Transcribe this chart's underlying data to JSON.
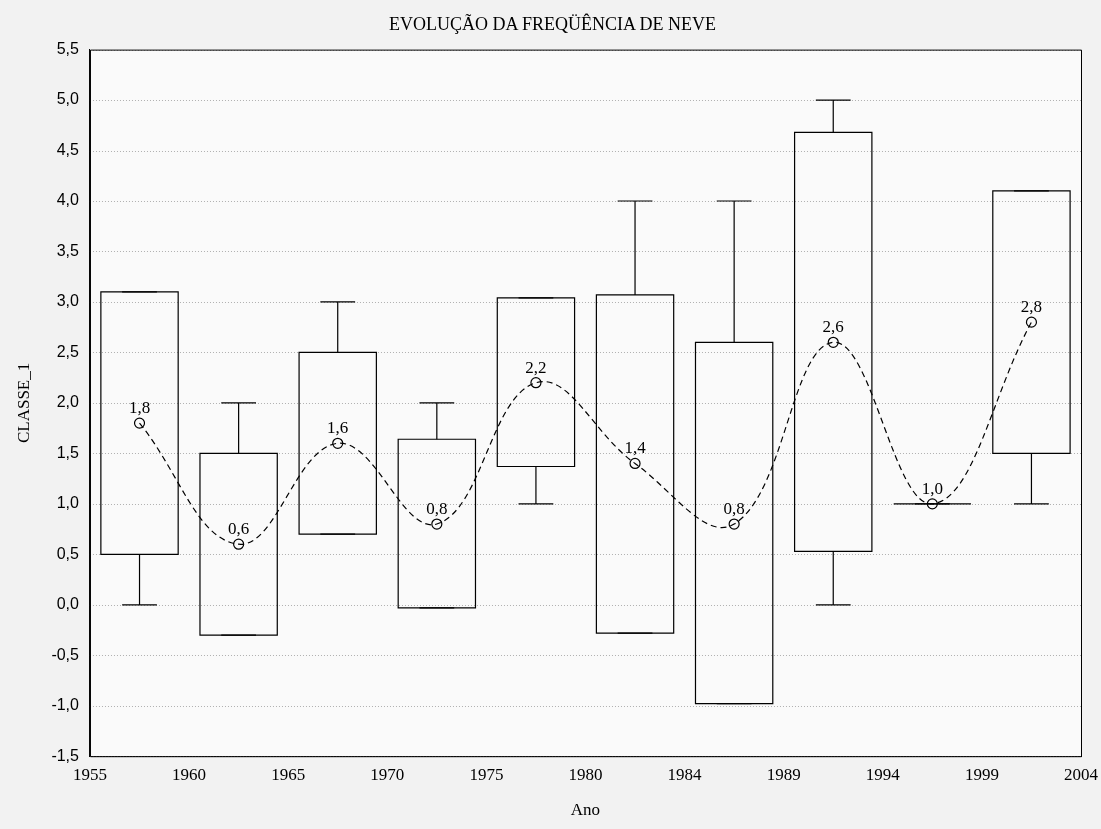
{
  "chart_data": {
    "type": "box",
    "title": "EVOLUÇÃO DA FREQÜÊNCIA DE NEVE",
    "xlabel": "Ano",
    "ylabel": "CLASSE_1",
    "categories": [
      null,
      null,
      null,
      null,
      null,
      null,
      null,
      null,
      null,
      null
    ],
    "annotations": [
      "1955",
      "1960",
      "1965",
      "1970",
      "1975",
      "1980",
      "1984",
      "1989",
      "1994",
      "1999",
      "2004"
    ],
    "ylim": [
      -1.5,
      5.5
    ],
    "yticks": [
      {
        "value": -1.5,
        "label": "-1,5"
      },
      {
        "value": -1,
        "label": "-1,0"
      },
      {
        "value": -0.5,
        "label": "-0,5"
      },
      {
        "value": 0,
        "label": "0,0"
      },
      {
        "value": 0.5,
        "label": "0,5"
      },
      {
        "value": 1,
        "label": "1,0"
      },
      {
        "value": 1.5,
        "label": "1,5"
      },
      {
        "value": 2,
        "label": "2,0"
      },
      {
        "value": 2.5,
        "label": "2,5"
      },
      {
        "value": 3,
        "label": "3,0"
      },
      {
        "value": 3.5,
        "label": "3,5"
      },
      {
        "value": 4,
        "label": "4,0"
      },
      {
        "value": 4.5,
        "label": "4,5"
      },
      {
        "value": 5,
        "label": "5,0"
      },
      {
        "value": 5.5,
        "label": "5,5"
      }
    ],
    "grid": "y",
    "legend": false,
    "series": [
      {
        "type": "box",
        "color": "#000000",
        "boxes": [
          {
            "low": 0,
            "q1": 0.5,
            "q3": 3.1,
            "high": 3.1
          },
          {
            "low": -0.3,
            "q1": -0.3,
            "q3": 1.5,
            "high": 2
          },
          {
            "low": 0.7,
            "q1": 0.7,
            "q3": 2.5,
            "high": 3
          },
          {
            "low": -0.03,
            "q1": -0.03,
            "q3": 1.64,
            "high": 2
          },
          {
            "low": 1,
            "q1": 1.37,
            "q3": 3.04,
            "high": 3.04
          },
          {
            "low": -0.28,
            "q1": -0.28,
            "q3": 3.07,
            "high": 4
          },
          {
            "low": -0.98,
            "q1": -0.98,
            "q3": 2.6,
            "high": 4
          },
          {
            "low": 0,
            "q1": 0.53,
            "q3": 4.68,
            "high": 5
          },
          {
            "low": 1,
            "q1": 1,
            "q3": 1,
            "high": 1
          },
          {
            "low": 1,
            "q1": 1.5,
            "q3": 4.1,
            "high": 4.1
          }
        ]
      },
      {
        "type": "line",
        "color": "#000000",
        "line_style": "dashed",
        "marker": "circle",
        "values": [
          1.8,
          0.6,
          1.6,
          0.8,
          2.2,
          1.4,
          0.8,
          2.6,
          1.0,
          2.8
        ],
        "value_labels": [
          "1,8",
          "0,6",
          "1,6",
          "0,8",
          "2,2",
          "1,4",
          "0,8",
          "2,6",
          "1,0",
          "2,8"
        ]
      }
    ]
  }
}
